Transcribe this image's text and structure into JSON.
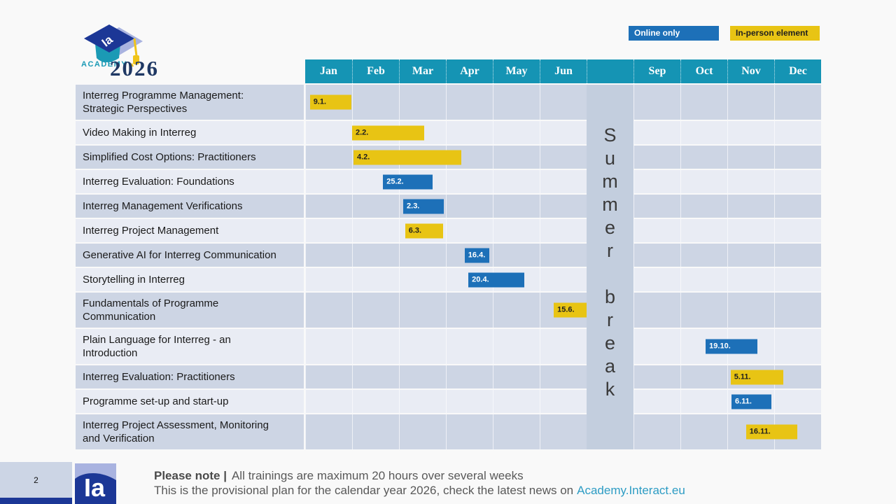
{
  "year": "2026",
  "page": {
    "number": "2"
  },
  "logo": {
    "academy_label": "ACADEMY",
    "brand_initials": "Ia"
  },
  "legend": {
    "online_label": "Online only",
    "inperson_label": "In-person element"
  },
  "colors": {
    "online": "#1d70b8",
    "inperson": "#e8c414",
    "header-teal": "#1594b4",
    "row-dark": "#cdd5e4",
    "row-light": "#e9ecf4",
    "summer": "#c3cede",
    "navy": "#1f3864",
    "brand-periwinkle": "#a9b3e0",
    "brand-navy": "#1c3796",
    "academy-teal": "#1b9ab5",
    "tassel-yellow": "#f0c419",
    "page-bg": "#f9f9f9",
    "note-gray": "#595959",
    "link-teal": "#2d9cc4",
    "pagenum-bg": "#ccd5e5"
  },
  "chart_data": {
    "type": "gantt",
    "title": "2026",
    "months": [
      "Jan",
      "Feb",
      "Mar",
      "Apr",
      "May",
      "Jun",
      "",
      "Sep",
      "Oct",
      "Nov",
      "Dec"
    ],
    "summer_label": "Summer break",
    "legend": {
      "online": "Online only",
      "inperson": "In-person element"
    },
    "rows": [
      {
        "name": "Interreg Programme Management:\nStrategic Perspectives",
        "two_line": true,
        "bar": {
          "label": "9.1.",
          "type": "inperson",
          "start": 0.1,
          "duration": 0.88
        }
      },
      {
        "name": "Video Making in Interreg",
        "two_line": false,
        "bar": {
          "label": "2.2.",
          "type": "inperson",
          "start": 1.0,
          "duration": 1.54
        }
      },
      {
        "name": "Simplified Cost Options: Practitioners",
        "two_line": false,
        "bar": {
          "label": "4.2.",
          "type": "inperson",
          "start": 1.03,
          "duration": 2.3
        }
      },
      {
        "name": "Interreg Evaluation: Foundations",
        "two_line": false,
        "bar": {
          "label": "25.2.",
          "type": "online",
          "start": 1.66,
          "duration": 1.06
        }
      },
      {
        "name": "Interreg Management Verifications",
        "two_line": false,
        "bar": {
          "label": "2.3.",
          "type": "online",
          "start": 2.09,
          "duration": 0.87
        }
      },
      {
        "name": "Interreg Project Management",
        "two_line": false,
        "bar": {
          "label": "6.3.",
          "type": "inperson",
          "start": 2.13,
          "duration": 0.81
        }
      },
      {
        "name": "Generative AI for Interreg Communication",
        "two_line": false,
        "bar": {
          "label": "16.4.",
          "type": "online",
          "start": 3.4,
          "duration": 0.53
        }
      },
      {
        "name": "Storytelling in Interreg",
        "two_line": false,
        "bar": {
          "label": "20.4.",
          "type": "online",
          "start": 3.48,
          "duration": 1.19
        }
      },
      {
        "name": "Fundamentals of Programme\nCommunication",
        "two_line": true,
        "bar": {
          "label": "15.6.",
          "type": "inperson",
          "start": 5.3,
          "duration": 0.72
        }
      },
      {
        "name": "Plain Language for Interreg - an\nIntroduction",
        "two_line": true,
        "bar": {
          "label": "19.10.",
          "type": "online",
          "start": 8.54,
          "duration": 1.1
        }
      },
      {
        "name": "Interreg Evaluation: Practitioners",
        "two_line": false,
        "bar": {
          "label": "5.11.",
          "type": "inperson",
          "start": 9.07,
          "duration": 1.12
        }
      },
      {
        "name": "Programme set-up and start-up",
        "two_line": false,
        "bar": {
          "label": "6.11.",
          "type": "online",
          "start": 9.09,
          "duration": 0.85
        }
      },
      {
        "name": "Interreg Project Assessment, Monitoring\nand Verification",
        "two_line": true,
        "bar": {
          "label": "16.11.",
          "type": "inperson",
          "start": 9.4,
          "duration": 1.09
        }
      }
    ]
  },
  "footer": {
    "note_title": "Please note |",
    "line1": "All trainings are maximum 20 hours over several weeks",
    "line2": "This is the provisional plan for the calendar year 2026, check the latest news on",
    "link_text": "Academy.Interact.eu"
  }
}
